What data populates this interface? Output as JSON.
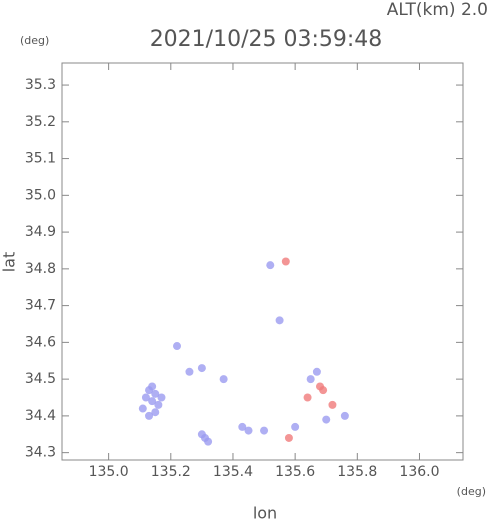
{
  "chart_data": {
    "type": "scatter",
    "title": "2021/10/25 03:59:48",
    "header": "ALT(km) 2.0",
    "y_unit": "(deg)",
    "x_unit": "(deg)",
    "xlabel": "lon",
    "ylabel": "lat",
    "xlim": [
      134.85,
      136.14
    ],
    "ylim": [
      34.28,
      35.36
    ],
    "xticks": [
      {
        "value": 135,
        "label": "135.0"
      },
      135.2,
      135.4,
      135.6,
      135.8,
      {
        "value": 136,
        "label": "136.0"
      }
    ],
    "yticks": [
      34.3,
      34.4,
      34.5,
      34.6,
      34.7,
      34.8,
      34.9,
      {
        "value": 35,
        "label": "35.0"
      },
      35.1,
      35.2,
      35.3
    ],
    "series": [
      {
        "color": "#9b9bf0",
        "x": [
          135.14,
          135.12,
          135.16,
          135.13,
          135.15,
          135.11,
          135.17,
          135.14,
          135.13,
          135.15,
          135.22,
          135.26,
          135.3,
          135.31,
          135.32,
          135.3,
          135.37,
          135.52,
          135.55,
          135.65,
          135.67,
          135.45,
          135.5,
          135.6,
          135.7,
          135.76,
          135.43
        ],
        "y": [
          34.44,
          34.45,
          34.43,
          34.47,
          34.41,
          34.42,
          34.45,
          34.48,
          34.4,
          34.46,
          34.59,
          34.52,
          34.53,
          34.34,
          34.33,
          34.35,
          34.5,
          34.81,
          34.66,
          34.5,
          34.52,
          34.36,
          34.36,
          34.37,
          34.39,
          34.4,
          34.37
        ]
      },
      {
        "color": "#f07a7a",
        "x": [
          135.68,
          135.69,
          135.57,
          135.58,
          135.64,
          135.72
        ],
        "y": [
          34.48,
          34.47,
          34.82,
          34.34,
          34.45,
          34.43
        ]
      }
    ]
  }
}
